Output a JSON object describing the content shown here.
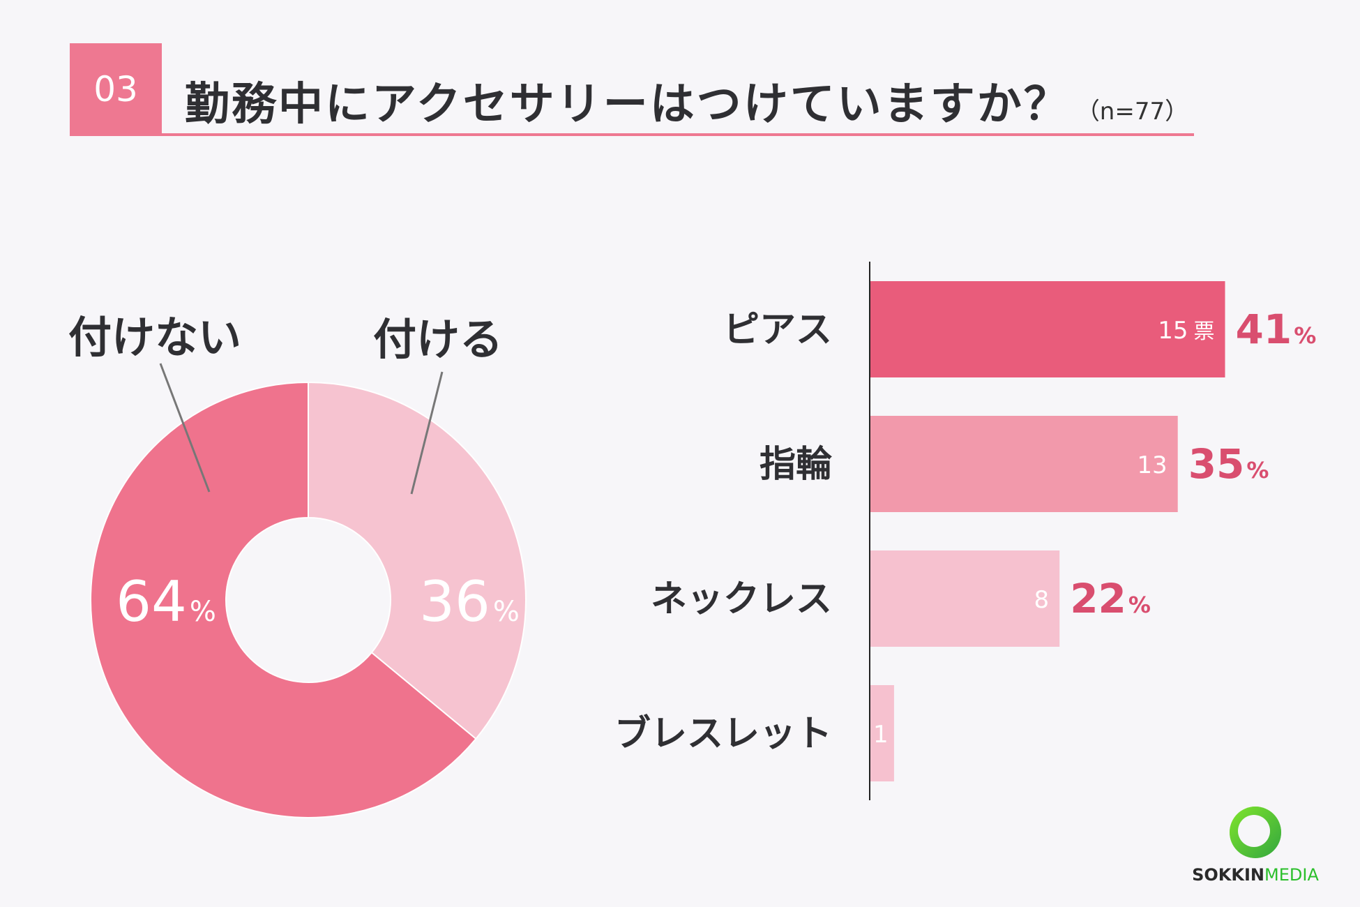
{
  "header": {
    "number": "03",
    "question": "勤務中にアクセサリーはつけていますか？",
    "sample": "（n=77）"
  },
  "colors": {
    "accent": "#ee7891",
    "bar1": "#e95c7b",
    "bar2": "#f299ab",
    "bar3": "#f6c1cf",
    "bar4": "#f6c1cf",
    "pie_no": "#ef738d",
    "pie_yes": "#f6c3d0",
    "pct_text": "#d94e6f"
  },
  "chart_data": [
    {
      "type": "pie",
      "donut": true,
      "slices": [
        {
          "label": "付けない",
          "value": 64,
          "display": "64",
          "unit": "%"
        },
        {
          "label": "付ける",
          "value": 36,
          "display": "36",
          "unit": "%"
        }
      ]
    },
    {
      "type": "bar",
      "orientation": "horizontal",
      "categories": [
        "ピアス",
        "指輪",
        "ネックレス",
        "ブレスレット"
      ],
      "values": [
        15,
        13,
        8,
        1
      ],
      "value_labels": [
        "15",
        "13",
        "8",
        "1"
      ],
      "vote_unit": "票",
      "percentages": [
        "41",
        "35",
        "22",
        ""
      ],
      "percent_unit": "%"
    }
  ],
  "logo": {
    "name_bold": "SOKKIN",
    "name_light": "MEDIA"
  }
}
